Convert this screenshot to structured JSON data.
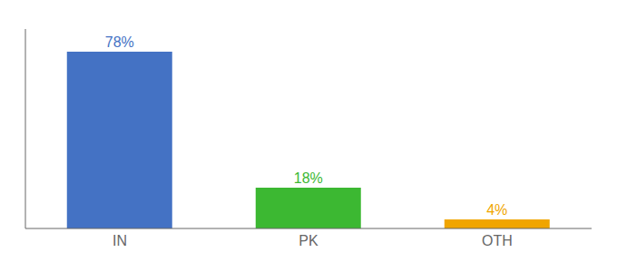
{
  "chart_data": {
    "type": "bar",
    "categories": [
      "IN",
      "PK",
      "OTH"
    ],
    "values": [
      78,
      18,
      4
    ],
    "value_labels": [
      "78%",
      "18%",
      "4%"
    ],
    "colors": [
      "#4472c4",
      "#3cb832",
      "#f0a500"
    ],
    "ylim": [
      0,
      88
    ],
    "data_labels": true,
    "tick_labels": "x"
  }
}
